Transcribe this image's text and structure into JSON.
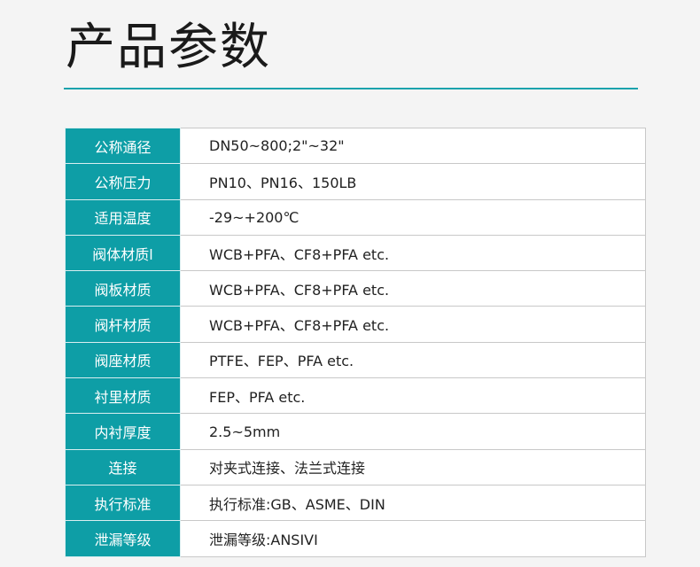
{
  "title": "产品参数",
  "accent": "#0e9ea6",
  "rows": [
    {
      "label": "公称通径",
      "value": "DN50~800;2\"~32\""
    },
    {
      "label": "公称压力",
      "value": "PN10、PN16、150LB"
    },
    {
      "label": "适用温度",
      "value": "-29~+200℃"
    },
    {
      "label": "阀体材质l",
      "value": "WCB+PFA、CF8+PFA  etc."
    },
    {
      "label": "阀板材质",
      "value": "WCB+PFA、CF8+PFA   etc."
    },
    {
      "label": "阀杆材质",
      "value": "WCB+PFA、CF8+PFA  etc."
    },
    {
      "label": "阀座材质",
      "value": "PTFE、FEP、PFA etc."
    },
    {
      "label": "衬里材质",
      "value": "FEP、PFA etc."
    },
    {
      "label": "内衬厚度",
      "value": "2.5~5mm"
    },
    {
      "label": "连接",
      "value": "对夹式连接、法兰式连接"
    },
    {
      "label": "执行标准",
      "value": "执行标准:GB、ASME、DIN"
    },
    {
      "label": "泄漏等级",
      "value": "泄漏等级:ANSIVI"
    }
  ]
}
